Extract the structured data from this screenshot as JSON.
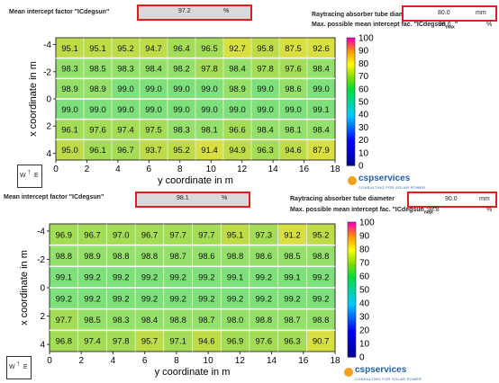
{
  "panels": [
    {
      "header": {
        "mean_label": "Mean intercept factor \"ICdegsun\"",
        "mean_value": "97.2",
        "mean_unit": "%",
        "diameter_label": "Raytracing absorber tube diameter",
        "diameter_value": "80.0",
        "diameter_unit": "mm",
        "max_label": "Max. possible mean intercept fac. \"ICdegsun",
        "max_sub": "max",
        "max_quote": "\"",
        "max_value": "98.6",
        "max_unit": "%"
      },
      "chart_data": {
        "type": "heatmap",
        "xlabel": "y coordinate in m",
        "ylabel": "x coordinate in m",
        "xlim": [
          0,
          18
        ],
        "ylim": [
          -4.5,
          4.5
        ],
        "xticks": [
          "0",
          "2",
          "4",
          "6",
          "8",
          "10",
          "12",
          "14",
          "16",
          "18"
        ],
        "yticks": [
          "-4",
          "-2",
          "0",
          "2",
          "4"
        ],
        "colorbar_ticks": [
          "0",
          "10",
          "20",
          "30",
          "40",
          "50",
          "60",
          "70",
          "80",
          "90",
          "100"
        ],
        "rows": [
          [
            95.1,
            95.1,
            95.2,
            94.7,
            96.4,
            96.5,
            92.7,
            95.8,
            87.5,
            92.6
          ],
          [
            98.3,
            98.5,
            98.3,
            98.4,
            98.2,
            97.8,
            98.4,
            97.8,
            97.6,
            98.4
          ],
          [
            98.9,
            98.9,
            99.0,
            99.0,
            99.0,
            99.0,
            98.9,
            99.0,
            98.6,
            99.0
          ],
          [
            99.0,
            99.0,
            99.0,
            99.0,
            99.0,
            99.0,
            99.0,
            99.0,
            99.0,
            99.1
          ],
          [
            96.1,
            97.6,
            97.4,
            97.5,
            98.3,
            98.1,
            96.6,
            98.4,
            98.1,
            98.4
          ],
          [
            95.0,
            96.1,
            96.7,
            93.7,
            95.2,
            91.4,
            94.9,
            96.3,
            94.6,
            87.9
          ]
        ]
      },
      "logo": {
        "main": "cspservices",
        "sub": "CONSULTING FOR SOLAR POWER"
      },
      "compass": {
        "w": "W",
        "e": "E"
      }
    },
    {
      "header": {
        "mean_label": "Mean intercept factor \"ICdegsun\"",
        "mean_value": "98.1",
        "mean_unit": "%",
        "diameter_label": "Raytracing absorber tube diameter",
        "diameter_value": "90.0",
        "diameter_unit": "mm",
        "max_label": "Max. possible mean intercept fac. \"ICdegsun",
        "max_sub": "max",
        "max_quote": "\"",
        "max_value": "98.8",
        "max_unit": "%"
      },
      "chart_data": {
        "type": "heatmap",
        "xlabel": "y coordinate in m",
        "ylabel": "x coordinate in m",
        "xlim": [
          0,
          18
        ],
        "ylim": [
          -4.5,
          4.5
        ],
        "xticks": [
          "0",
          "2",
          "4",
          "6",
          "8",
          "10",
          "12",
          "14",
          "16",
          "18"
        ],
        "yticks": [
          "-4",
          "-2",
          "0",
          "2",
          "4"
        ],
        "colorbar_ticks": [
          "0",
          "10",
          "20",
          "30",
          "40",
          "50",
          "60",
          "70",
          "80",
          "90",
          "100"
        ],
        "rows": [
          [
            96.9,
            96.7,
            97.0,
            96.7,
            97.7,
            97.7,
            95.1,
            97.3,
            91.2,
            95.2
          ],
          [
            98.8,
            98.9,
            98.8,
            98.8,
            98.7,
            98.6,
            98.8,
            98.6,
            98.5,
            98.8
          ],
          [
            99.1,
            99.2,
            99.2,
            99.2,
            99.2,
            99.2,
            99.1,
            99.2,
            99.1,
            99.2
          ],
          [
            99.2,
            99.2,
            99.2,
            99.2,
            99.2,
            99.2,
            99.2,
            99.2,
            99.2,
            99.2
          ],
          [
            97.7,
            98.5,
            98.3,
            98.4,
            98.8,
            98.7,
            98.0,
            98.8,
            98.7,
            98.8
          ],
          [
            96.8,
            97.4,
            97.8,
            95.7,
            97.1,
            94.6,
            96.9,
            97.6,
            96.3,
            90.7
          ]
        ]
      },
      "logo": {
        "main": "cspservices",
        "sub": "CONSULTING FOR SOLAR POWER"
      },
      "compass": {
        "w": "W",
        "e": "E"
      }
    }
  ]
}
